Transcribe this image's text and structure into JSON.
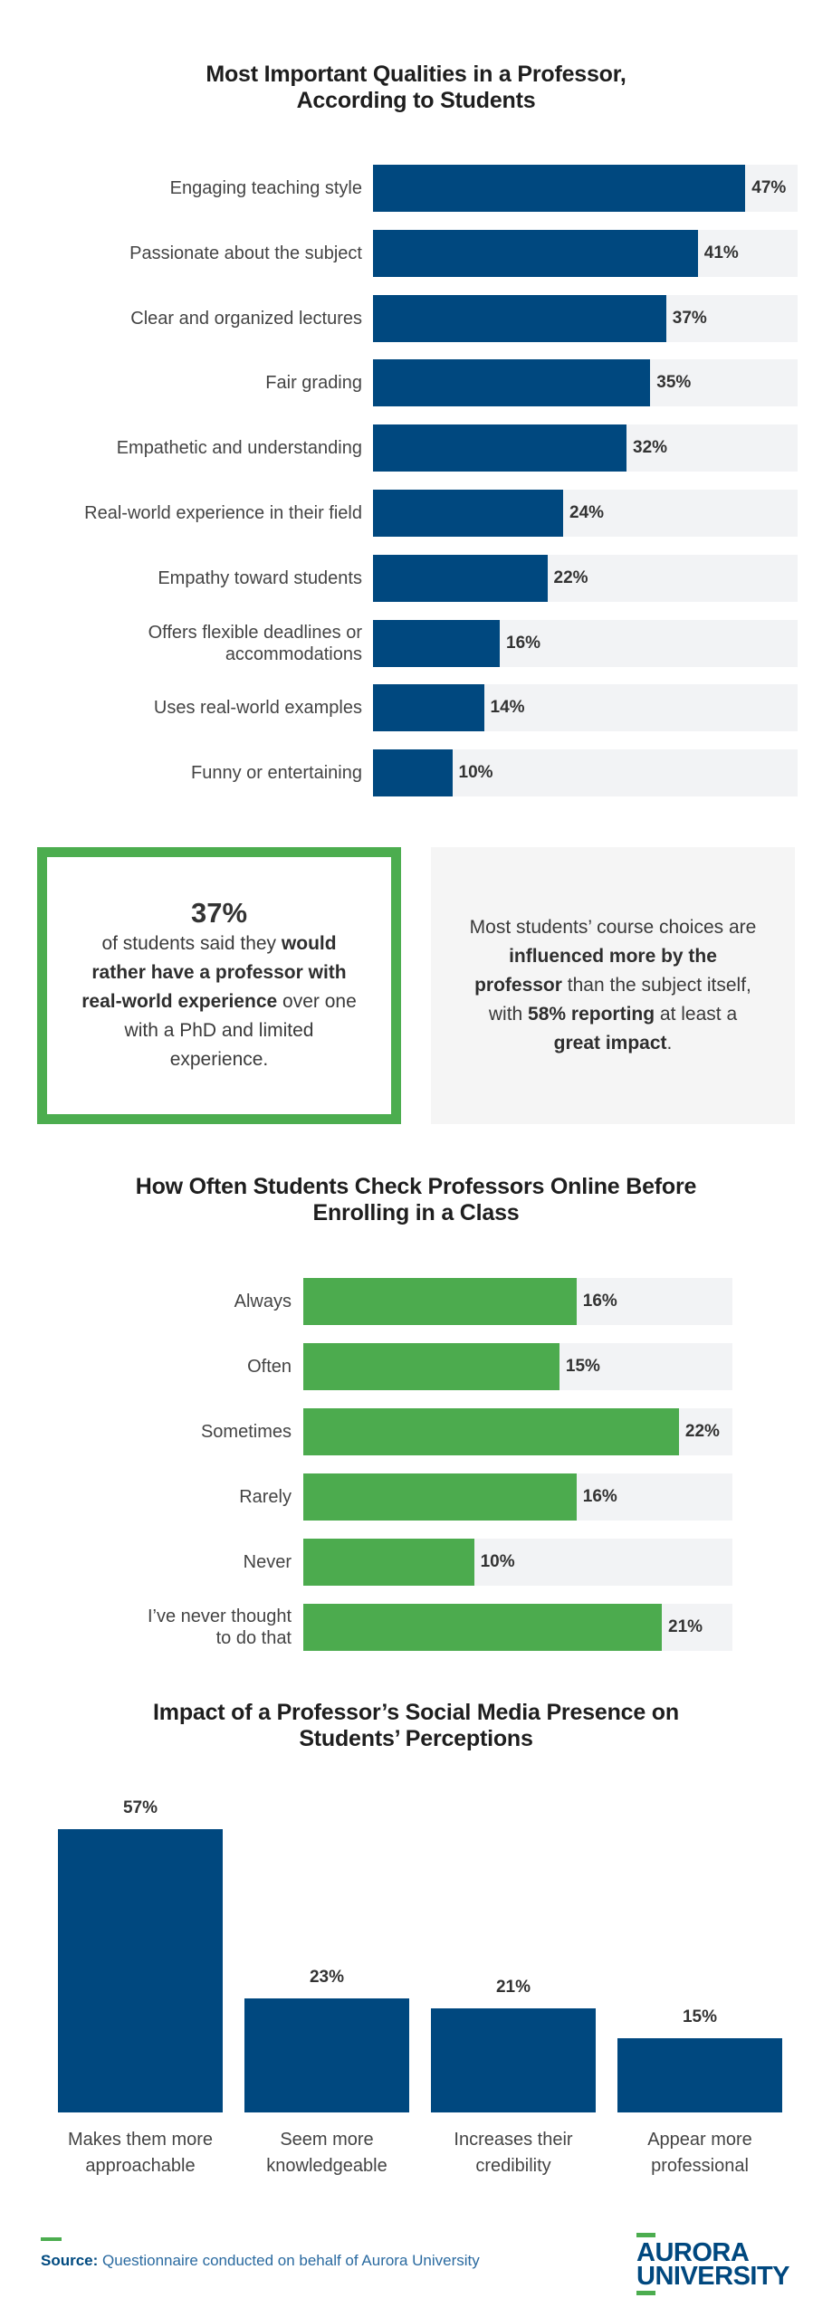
{
  "chart_data": [
    {
      "type": "bar",
      "orientation": "horizontal",
      "title": "Most Important Qualities in a Professor, According to Students",
      "categories": [
        "Engaging teaching style",
        "Passionate about the subject",
        "Clear and organized lectures",
        "Fair grading",
        "Empathetic and understanding",
        "Real-world experience in their field",
        "Empathy toward students",
        "Offers flexible deadlines or accommodations",
        "Uses real-world examples",
        "Funny or entertaining"
      ],
      "values": [
        47,
        41,
        37,
        35,
        32,
        24,
        22,
        16,
        14,
        10
      ],
      "unit": "%",
      "color": "#00487f",
      "xlabel": "",
      "ylabel": ""
    },
    {
      "type": "bar",
      "orientation": "horizontal",
      "title": "How Often Students Check Professors Online Before Enrolling in a Class",
      "categories": [
        "Always",
        "Often",
        "Sometimes",
        "Rarely",
        "Never",
        "I've never thought to do that"
      ],
      "values": [
        16,
        15,
        22,
        16,
        10,
        21
      ],
      "unit": "%",
      "color": "#4cab4e",
      "xlabel": "",
      "ylabel": ""
    },
    {
      "type": "bar",
      "orientation": "vertical",
      "title": "Impact of a Professor's Social Media Presence on Students' Perceptions",
      "categories": [
        "Makes them more approachable",
        "Seem more knowledgeable",
        "Increases their credibility",
        "Appear more professional"
      ],
      "values": [
        57,
        23,
        21,
        15
      ],
      "unit": "%",
      "color": "#00487f",
      "xlabel": "",
      "ylabel": ""
    }
  ],
  "chart1": {
    "title_line1": "Most Important Qualities in a Professor,",
    "title_line2": "According to Students",
    "rows": [
      {
        "label": "Engaging teaching style",
        "value": 47,
        "text": "47%"
      },
      {
        "label": "Passionate about the subject",
        "value": 41,
        "text": "41%"
      },
      {
        "label": "Clear and organized lectures",
        "value": 37,
        "text": "37%"
      },
      {
        "label": "Fair grading",
        "value": 35,
        "text": "35%"
      },
      {
        "label": "Empathetic and understanding",
        "value": 32,
        "text": "32%"
      },
      {
        "label": "Real-world experience in their field",
        "value": 24,
        "text": "24%"
      },
      {
        "label": "Empathy toward students",
        "value": 22,
        "text": "22%"
      },
      {
        "label": "Offers flexible deadlines or\naccommodations",
        "value": 16,
        "text": "16%"
      },
      {
        "label": "Uses real-world examples",
        "value": 14,
        "text": "14%"
      },
      {
        "label": "Funny or entertaining",
        "value": 10,
        "text": "10%"
      }
    ]
  },
  "callouts": {
    "left": {
      "stat": "37%",
      "t1": "of students said they ",
      "b1": "would rather have a professor with real-world experience",
      "t2": " over one with a PhD and limited experience."
    },
    "right": {
      "t1": "Most students’ course choices are ",
      "b1": "influenced more by the professor",
      "t2": " than the subject itself, with ",
      "b2": "58% reporting",
      "t3": " at least a ",
      "b3": "great impact",
      "t4": "."
    }
  },
  "chart2": {
    "title_line1": "How Often Students Check Professors Online Before",
    "title_line2": "Enrolling in a Class",
    "rows": [
      {
        "label": "Always",
        "value": 16,
        "text": "16%"
      },
      {
        "label": "Often",
        "value": 15,
        "text": "15%"
      },
      {
        "label": "Sometimes",
        "value": 22,
        "text": "22%"
      },
      {
        "label": "Rarely",
        "value": 16,
        "text": "16%"
      },
      {
        "label": "Never",
        "value": 10,
        "text": "10%"
      },
      {
        "label": "I’ve never thought\nto do that",
        "value": 21,
        "text": "21%"
      }
    ]
  },
  "chart3": {
    "title_line1": "Impact of a Professor’s Social Media Presence on",
    "title_line2": "Students’ Perceptions",
    "cols": [
      {
        "label": "Makes them more\napproachable",
        "value": 57,
        "text": "57%"
      },
      {
        "label": "Seem more\nknowledgeable",
        "value": 23,
        "text": "23%"
      },
      {
        "label": "Increases their\ncredibility",
        "value": 21,
        "text": "21%"
      },
      {
        "label": "Appear more\nprofessional",
        "value": 15,
        "text": "15%"
      }
    ]
  },
  "footer": {
    "source_label": "Source:",
    "source_text": " Questionnaire conducted on behalf of Aurora University",
    "logo_line1": "AURORA",
    "logo_line2": "UNIVERSITY"
  },
  "colors": {
    "navy": "#00487f",
    "green": "#4cab4e",
    "track": "#f2f3f5",
    "callout_gray": "#f5f5f5"
  }
}
